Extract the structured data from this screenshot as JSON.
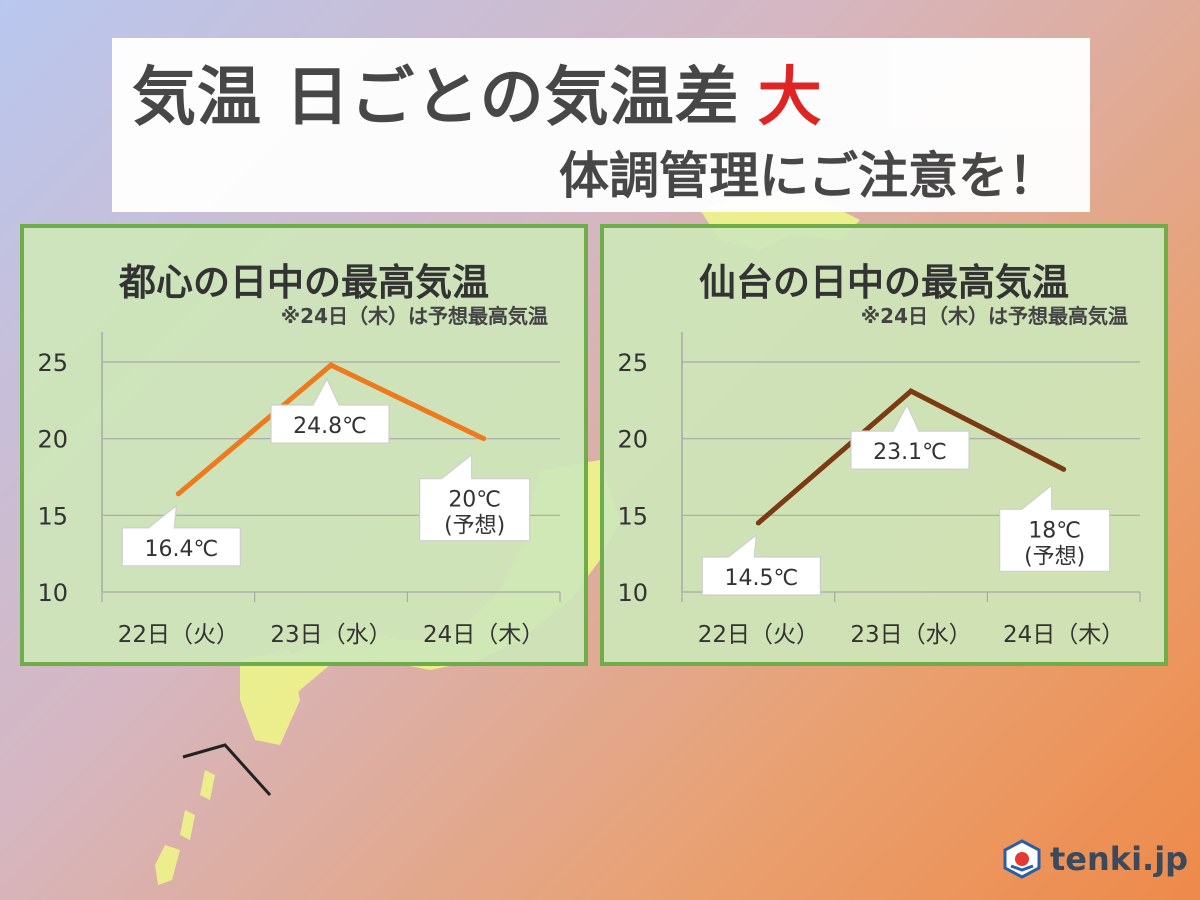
{
  "headline": {
    "main": "気温 日ごとの気温差",
    "accent": "大",
    "sub": "体調管理にご注意を！"
  },
  "colors": {
    "accent_red": "#e02020",
    "line_tokyo": "#ee7a1e",
    "line_sendai": "#7a3a12",
    "panel_border": "#6fac4a"
  },
  "chart_data": [
    {
      "type": "line",
      "title": "都心の日中の最高気温",
      "note": "※24日（木）は予想最高気温",
      "categories": [
        "22日（火）",
        "23日（水）",
        "24日（木）"
      ],
      "series": [
        {
          "values": [
            16.4,
            24.8,
            20
          ]
        }
      ],
      "data_labels": [
        [
          "16.4℃"
        ],
        [
          "24.8℃"
        ],
        [
          "20℃",
          "(予想)"
        ]
      ],
      "y_ticks": [
        "25",
        "20",
        "15",
        "10"
      ],
      "ylim": [
        10,
        25
      ],
      "grid": true,
      "legend": "none"
    },
    {
      "type": "line",
      "title": "仙台の日中の最高気温",
      "note": "※24日（木）は予想最高気温",
      "categories": [
        "22日（火）",
        "23日（水）",
        "24日（木）"
      ],
      "series": [
        {
          "values": [
            14.5,
            23.1,
            18
          ]
        }
      ],
      "data_labels": [
        [
          "14.5℃"
        ],
        [
          "23.1℃"
        ],
        [
          "18℃",
          "(予想)"
        ]
      ],
      "y_ticks": [
        "25",
        "20",
        "15",
        "10"
      ],
      "ylim": [
        10,
        25
      ],
      "grid": true,
      "legend": "none"
    }
  ],
  "logo": {
    "text": "tenki.jp",
    "icon": "tenki-logo-icon"
  }
}
